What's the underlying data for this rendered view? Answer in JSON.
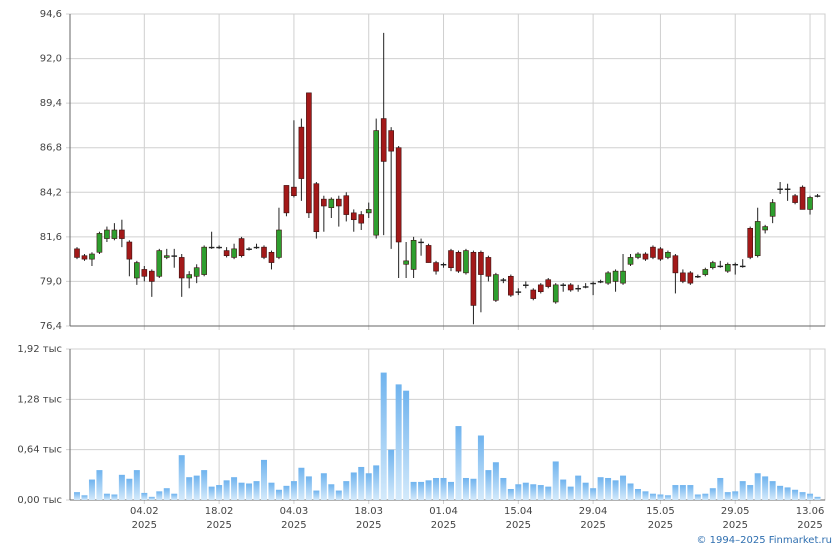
{
  "chart_data": [
    {
      "type": "candlestick",
      "ylim": [
        76.4,
        94.6
      ],
      "yticks": [
        {
          "value": 76.4,
          "label": "76,4"
        },
        {
          "value": 79.0,
          "label": "79,0"
        },
        {
          "value": 81.6,
          "label": "81,6"
        },
        {
          "value": 84.2,
          "label": "84,2"
        },
        {
          "value": 86.8,
          "label": "86,8"
        },
        {
          "value": 89.4,
          "label": "89,4"
        },
        {
          "value": 92.0,
          "label": "92,0"
        },
        {
          "value": 94.6,
          "label": "94,6"
        }
      ],
      "grid": true,
      "up_color": "#2e9e2e",
      "down_color": "#a31919",
      "open": [
        80.9,
        80.5,
        80.3,
        80.7,
        81.5,
        81.5,
        82.0,
        81.3,
        79.2,
        79.7,
        79.6,
        79.3,
        80.4,
        80.5,
        80.4,
        79.2,
        79.3,
        79.4,
        81.0,
        81.0,
        80.8,
        80.4,
        81.5,
        80.9,
        81.0,
        81.0,
        80.7,
        80.4,
        84.6,
        84.5,
        88.0,
        90.0,
        84.7,
        83.8,
        83.3,
        83.8,
        84.0,
        83.0,
        82.9,
        83.0,
        81.7,
        88.5,
        87.8,
        86.8,
        80.0,
        79.7,
        81.3,
        81.1,
        80.1,
        80.0,
        80.8,
        80.7,
        79.5,
        80.7,
        80.7,
        80.4,
        77.9,
        79.1,
        79.3,
        78.4,
        78.8,
        78.5,
        78.8,
        79.1,
        77.8,
        78.8,
        78.8,
        78.6,
        78.7,
        78.9,
        79.0,
        78.9,
        79.0,
        78.9,
        80.0,
        80.4,
        80.6,
        81.0,
        80.9,
        80.4,
        80.5,
        79.5,
        79.5,
        79.3,
        79.4,
        79.8,
        79.9,
        79.6,
        80.0,
        79.9,
        82.1,
        80.5,
        82.0,
        82.8,
        84.4,
        84.4,
        84.0,
        84.5,
        83.2,
        84.0
      ],
      "high": [
        81.0,
        80.6,
        80.7,
        81.9,
        82.2,
        82.4,
        82.6,
        81.4,
        80.2,
        79.9,
        79.7,
        80.9,
        80.9,
        80.9,
        80.6,
        79.6,
        80.0,
        81.1,
        81.9,
        81.1,
        81.0,
        81.2,
        81.6,
        81.0,
        81.2,
        81.1,
        80.8,
        83.3,
        84.6,
        88.4,
        88.5,
        90.0,
        84.8,
        84.0,
        83.9,
        84.0,
        84.2,
        83.2,
        83.1,
        83.6,
        88.5,
        93.5,
        88.0,
        86.9,
        81.3,
        81.6,
        81.5,
        81.2,
        80.2,
        80.1,
        80.9,
        80.8,
        80.9,
        80.8,
        80.8,
        80.5,
        79.5,
        79.2,
        79.4,
        78.6,
        79.0,
        78.6,
        78.9,
        79.2,
        78.9,
        78.9,
        78.9,
        78.8,
        78.9,
        79.0,
        79.1,
        79.6,
        79.7,
        80.6,
        80.6,
        80.7,
        80.7,
        81.1,
        81.0,
        80.8,
        80.6,
        79.7,
        79.6,
        79.4,
        79.8,
        80.2,
        80.2,
        80.1,
        80.1,
        80.3,
        82.2,
        83.3,
        82.3,
        83.8,
        84.8,
        84.7,
        84.1,
        84.6,
        84.0,
        84.1
      ],
      "low": [
        80.3,
        80.2,
        79.9,
        80.6,
        81.3,
        81.4,
        81.0,
        79.3,
        78.8,
        79.0,
        78.1,
        79.2,
        80.3,
        79.8,
        78.1,
        78.6,
        78.9,
        79.3,
        80.9,
        80.9,
        80.4,
        80.3,
        80.4,
        80.8,
        80.9,
        80.3,
        79.7,
        80.3,
        82.8,
        83.9,
        83.7,
        82.7,
        81.5,
        81.9,
        82.7,
        82.2,
        82.5,
        81.9,
        82.0,
        82.7,
        81.5,
        81.7,
        80.9,
        79.2,
        79.2,
        79.2,
        80.5,
        80.1,
        79.4,
        79.8,
        79.6,
        79.5,
        79.4,
        76.5,
        77.2,
        79.0,
        77.8,
        78.9,
        78.1,
        78.2,
        78.6,
        77.9,
        78.3,
        78.6,
        77.7,
        78.4,
        78.4,
        78.4,
        78.6,
        78.2,
        78.9,
        78.8,
        78.4,
        78.8,
        79.9,
        80.3,
        80.2,
        80.3,
        80.2,
        80.3,
        78.3,
        78.9,
        78.8,
        79.2,
        79.3,
        79.7,
        79.8,
        79.5,
        79.4,
        79.8,
        80.3,
        80.4,
        81.8,
        82.4,
        84.1,
        83.7,
        83.5,
        83.2,
        82.9,
        83.9
      ],
      "close": [
        80.4,
        80.3,
        80.6,
        81.8,
        82.0,
        82.0,
        81.5,
        80.3,
        80.1,
        79.3,
        79.0,
        80.8,
        80.5,
        80.5,
        79.2,
        79.4,
        79.8,
        81.0,
        81.0,
        81.0,
        80.5,
        80.9,
        80.5,
        80.9,
        81.0,
        80.4,
        80.1,
        82.0,
        83.0,
        84.0,
        85.0,
        83.0,
        81.9,
        83.4,
        83.8,
        83.4,
        82.9,
        82.6,
        82.4,
        83.2,
        87.8,
        86.0,
        86.6,
        81.3,
        80.2,
        81.4,
        81.3,
        80.1,
        79.6,
        80.0,
        79.8,
        79.6,
        80.8,
        77.6,
        79.4,
        79.3,
        79.4,
        79.1,
        78.2,
        78.4,
        78.8,
        78.0,
        78.4,
        78.7,
        78.8,
        78.8,
        78.5,
        78.6,
        78.7,
        78.9,
        79.0,
        79.5,
        79.6,
        79.6,
        80.4,
        80.6,
        80.3,
        80.4,
        80.3,
        80.7,
        79.5,
        79.0,
        78.9,
        79.3,
        79.7,
        80.1,
        79.9,
        80.0,
        80.0,
        79.9,
        80.4,
        82.5,
        82.2,
        83.6,
        84.4,
        84.4,
        83.6,
        83.2,
        83.9,
        84.0
      ]
    },
    {
      "type": "bar",
      "color": "#8cc4f0",
      "ylim": [
        0,
        1.92
      ],
      "yticks": [
        {
          "value": 0,
          "label": "0,00 тыс"
        },
        {
          "value": 0.64,
          "label": "0,64 тыс"
        },
        {
          "value": 1.28,
          "label": "1,28 тыс"
        },
        {
          "value": 1.92,
          "label": "1,92 тыс"
        }
      ],
      "grid": true,
      "categories": [
        null,
        null,
        null,
        null,
        null,
        null,
        null,
        null,
        null,
        "04.02\n2025",
        null,
        null,
        null,
        null,
        null,
        null,
        null,
        null,
        null,
        "18.02\n2025",
        null,
        null,
        null,
        null,
        null,
        null,
        null,
        null,
        null,
        "04.03\n2025",
        null,
        null,
        null,
        null,
        null,
        null,
        null,
        null,
        null,
        "18.03\n2025",
        null,
        null,
        null,
        null,
        null,
        null,
        null,
        null,
        null,
        "01.04\n2025",
        null,
        null,
        null,
        null,
        null,
        null,
        null,
        null,
        null,
        "15.04\n2025",
        null,
        null,
        null,
        null,
        null,
        null,
        null,
        null,
        null,
        "29.04\n2025",
        null,
        null,
        null,
        null,
        null,
        null,
        null,
        null,
        "15.05\n2025",
        null,
        null,
        null,
        null,
        null,
        null,
        null,
        null,
        null,
        "29.05\n2025",
        null,
        null,
        null,
        null,
        null,
        null,
        null,
        null,
        null,
        "13.06\n2025",
        null
      ],
      "values": [
        0.1,
        0.06,
        0.26,
        0.38,
        0.08,
        0.07,
        0.32,
        0.27,
        0.38,
        0.09,
        0.04,
        0.11,
        0.15,
        0.08,
        0.57,
        0.29,
        0.31,
        0.38,
        0.17,
        0.19,
        0.25,
        0.29,
        0.22,
        0.21,
        0.24,
        0.51,
        0.22,
        0.13,
        0.18,
        0.24,
        0.41,
        0.3,
        0.12,
        0.34,
        0.2,
        0.12,
        0.24,
        0.35,
        0.42,
        0.34,
        0.44,
        1.62,
        0.64,
        1.47,
        1.39,
        0.23,
        0.23,
        0.25,
        0.28,
        0.28,
        0.23,
        0.94,
        0.28,
        0.27,
        0.82,
        0.38,
        0.48,
        0.28,
        0.14,
        0.2,
        0.22,
        0.2,
        0.19,
        0.17,
        0.49,
        0.26,
        0.17,
        0.31,
        0.22,
        0.15,
        0.29,
        0.28,
        0.25,
        0.31,
        0.21,
        0.14,
        0.11,
        0.08,
        0.07,
        0.06,
        0.19,
        0.19,
        0.19,
        0.07,
        0.08,
        0.15,
        0.28,
        0.1,
        0.11,
        0.24,
        0.19,
        0.34,
        0.3,
        0.24,
        0.18,
        0.16,
        0.13,
        0.1,
        0.08,
        0.04
      ]
    }
  ],
  "footer": "© 1994–2025 Finmarket.ru"
}
